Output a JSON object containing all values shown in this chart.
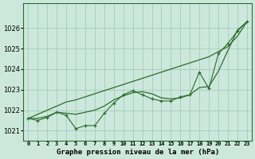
{
  "title": "Graphe pression niveau de la mer (hPa)",
  "background_color": "#cce8dc",
  "grid_color": "#aacfbf",
  "line_color": "#2d6b2d",
  "ylim": [
    1020.5,
    1027.2
  ],
  "yticks": [
    1021,
    1022,
    1023,
    1024,
    1025,
    1026
  ],
  "x_labels": [
    "0",
    "1",
    "2",
    "3",
    "4",
    "5",
    "6",
    "7",
    "8",
    "9",
    "10",
    "11",
    "12",
    "13",
    "14",
    "15",
    "16",
    "17",
    "18",
    "19",
    "20",
    "21",
    "22",
    "23"
  ],
  "line_straight": [
    1021.6,
    1021.8,
    1022.0,
    1022.2,
    1022.4,
    1022.5,
    1022.65,
    1022.8,
    1022.95,
    1023.1,
    1023.25,
    1023.4,
    1023.55,
    1023.7,
    1023.85,
    1024.0,
    1024.15,
    1024.3,
    1024.45,
    1024.6,
    1024.85,
    1025.1,
    1025.6,
    1026.3
  ],
  "line_smooth": [
    1021.6,
    1021.6,
    1021.7,
    1021.9,
    1021.85,
    1021.8,
    1021.9,
    1022.0,
    1022.2,
    1022.5,
    1022.7,
    1022.85,
    1022.9,
    1022.8,
    1022.6,
    1022.55,
    1022.6,
    1022.75,
    1023.1,
    1023.15,
    1023.9,
    1024.9,
    1025.9,
    1026.3
  ],
  "line_wavy": [
    1021.6,
    1021.5,
    1021.65,
    1021.9,
    1021.75,
    1021.1,
    1021.25,
    1021.25,
    1021.85,
    1022.35,
    1022.75,
    1022.95,
    1022.75,
    1022.55,
    1022.45,
    1022.45,
    1022.65,
    1022.75,
    1023.85,
    1023.05,
    1024.75,
    1025.25,
    1025.85,
    1026.3
  ]
}
